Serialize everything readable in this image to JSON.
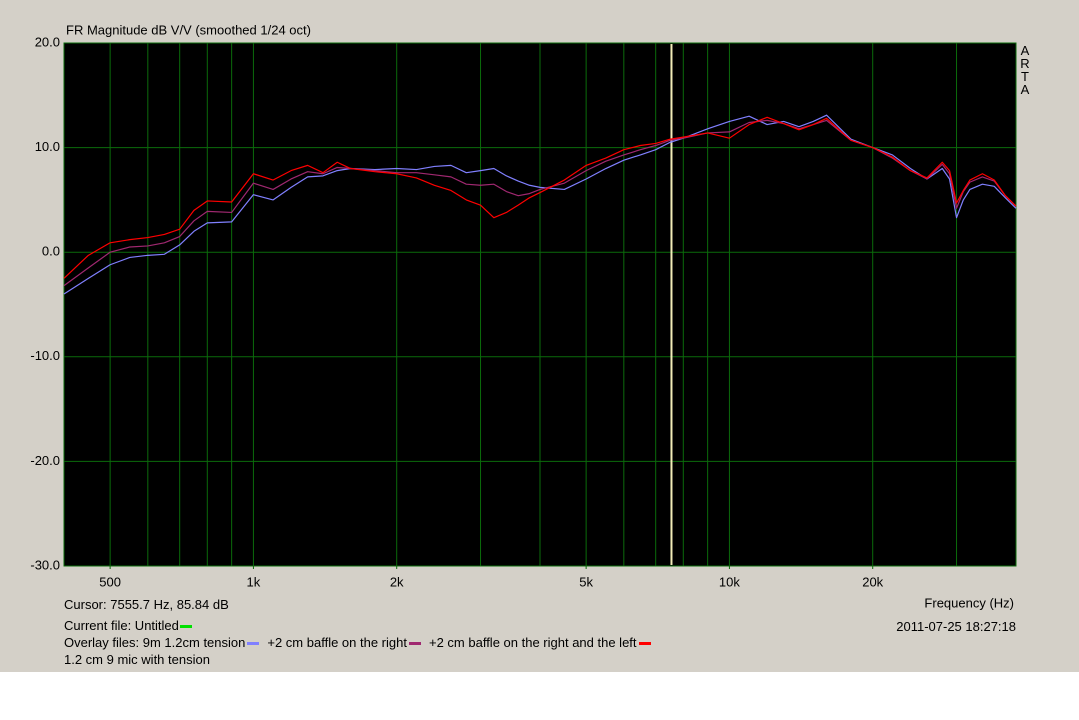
{
  "chart_data": {
    "type": "line",
    "title": "FR Magnitude dB V/V (smoothed 1/24 oct)",
    "brand": "ARTA",
    "x_label": "Frequency (Hz)",
    "timestamp": "2011-07-25  18:27:18",
    "cursor_text": "Cursor: 7555.7 Hz, 85.84 dB",
    "cursor_x": 7555.7,
    "cursor_color": "#f2ecb8",
    "current_file_label": "Current file: Untitled",
    "current_file_color": "#00e000",
    "overlay_label": "Overlay files:",
    "note": "1.2 cm 9 mic with tension",
    "xscale": "log",
    "grid": true,
    "grid_color": "#0b6b0b",
    "xlim": [
      400,
      40000
    ],
    "ylim": [
      -30,
      20
    ],
    "yticks": [
      {
        "value": -30,
        "label": "-30.0"
      },
      {
        "value": -20,
        "label": "-20.0"
      },
      {
        "value": -10,
        "label": "-10.0"
      },
      {
        "value": 0,
        "label": "0.0"
      },
      {
        "value": 10,
        "label": "10.0"
      },
      {
        "value": 20,
        "label": "20.0"
      }
    ],
    "xticks": [
      500,
      {
        "value": 1000,
        "label": "1k"
      },
      {
        "value": 2000,
        "label": "2k"
      },
      {
        "value": 5000,
        "label": "5k"
      },
      {
        "value": 10000,
        "label": "10k"
      },
      {
        "value": 20000,
        "label": "20k"
      }
    ],
    "xgrid": [
      500,
      600,
      700,
      800,
      900,
      1000,
      2000,
      3000,
      4000,
      5000,
      6000,
      7000,
      8000,
      9000,
      10000,
      20000,
      30000
    ],
    "x": [
      400,
      450,
      500,
      550,
      600,
      650,
      700,
      750,
      800,
      900,
      1000,
      1100,
      1200,
      1300,
      1400,
      1500,
      1600,
      1800,
      2000,
      2200,
      2400,
      2600,
      2800,
      3000,
      3200,
      3400,
      3600,
      3800,
      4000,
      4500,
      5000,
      5500,
      6000,
      6500,
      7000,
      7500,
      8000,
      9000,
      10000,
      11000,
      12000,
      13000,
      14000,
      15000,
      16000,
      18000,
      20000,
      22000,
      24000,
      26000,
      28000,
      29000,
      30000,
      31000,
      32000,
      34000,
      36000,
      38000,
      40000
    ],
    "series": [
      {
        "name": "9m 1.2cm tension",
        "color": "#8080ff",
        "values": [
          -4.0,
          -2.5,
          -1.2,
          -0.5,
          -0.3,
          -0.2,
          0.7,
          2.0,
          2.8,
          2.9,
          5.5,
          5.0,
          6.2,
          7.2,
          7.3,
          7.8,
          8.0,
          7.9,
          8.0,
          7.9,
          8.2,
          8.3,
          7.6,
          7.8,
          8.0,
          7.3,
          6.8,
          6.4,
          6.2,
          6.0,
          7.0,
          8.0,
          8.8,
          9.3,
          9.8,
          10.5,
          10.9,
          11.8,
          12.5,
          13.0,
          12.2,
          12.5,
          12.0,
          12.5,
          13.1,
          10.8,
          10.0,
          9.3,
          8.0,
          7.0,
          8.0,
          7.0,
          3.3,
          5.0,
          6.0,
          6.5,
          6.3,
          5.2,
          4.2
        ]
      },
      {
        "name": "+2 cm baffle on the right",
        "color": "#a02870",
        "values": [
          -3.2,
          -1.5,
          0.0,
          0.5,
          0.6,
          0.9,
          1.5,
          3.0,
          3.9,
          3.8,
          6.6,
          6.0,
          7.0,
          7.7,
          7.5,
          8.1,
          8.0,
          7.8,
          7.6,
          7.6,
          7.4,
          7.2,
          6.5,
          6.4,
          6.5,
          5.8,
          5.4,
          5.6,
          6.0,
          6.6,
          7.8,
          8.7,
          9.3,
          9.8,
          10.2,
          10.7,
          10.9,
          11.4,
          11.5,
          12.4,
          12.6,
          12.3,
          11.8,
          12.2,
          12.6,
          10.7,
          10.0,
          9.0,
          7.8,
          7.0,
          8.4,
          7.5,
          4.2,
          5.8,
          6.7,
          7.2,
          6.8,
          5.4,
          4.4
        ]
      },
      {
        "name": "+2 cm baffle on the right and the left",
        "color": "#ff0000",
        "values": [
          -2.5,
          -0.3,
          0.9,
          1.2,
          1.4,
          1.7,
          2.2,
          4.0,
          4.9,
          4.8,
          7.5,
          6.9,
          7.8,
          8.3,
          7.6,
          8.6,
          8.0,
          7.7,
          7.5,
          7.1,
          6.4,
          5.9,
          5.0,
          4.5,
          3.3,
          3.8,
          4.5,
          5.2,
          5.7,
          6.9,
          8.3,
          9.0,
          9.8,
          10.2,
          10.4,
          10.8,
          11.0,
          11.4,
          10.9,
          12.2,
          12.9,
          12.3,
          11.7,
          12.2,
          12.8,
          10.7,
          10.0,
          9.1,
          7.8,
          7.1,
          8.6,
          7.8,
          4.7,
          5.9,
          6.9,
          7.5,
          6.9,
          5.4,
          4.4
        ]
      }
    ]
  }
}
